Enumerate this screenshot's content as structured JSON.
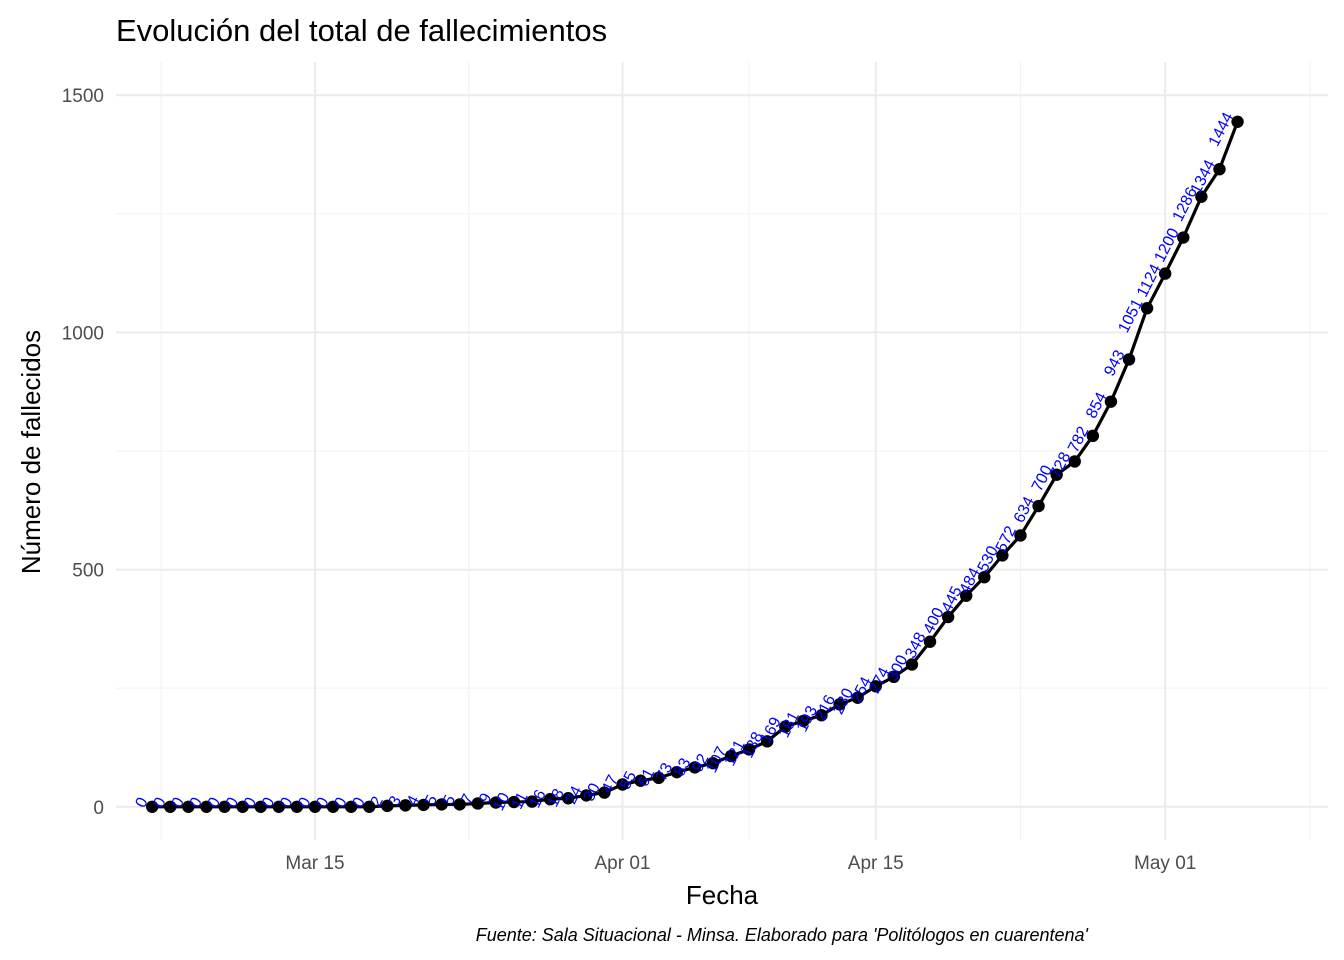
{
  "chart_data": {
    "type": "line",
    "title": "Evolución del total de fallecimientos",
    "xlabel": "Fecha",
    "ylabel": "Número de fallecidos",
    "caption": "Fuente: Sala Situacional - Minsa. Elaborado para 'Politólogos en cuarentena'",
    "x_start": "2020-03-06",
    "x_range": [
      "2020-03-04",
      "2020-05-10"
    ],
    "ylim": [
      -70,
      1570
    ],
    "y_ticks": [
      0,
      500,
      1000,
      1500
    ],
    "x_ticks": [
      {
        "date": "2020-03-15",
        "label": "Mar 15"
      },
      {
        "date": "2020-04-01",
        "label": "Apr 01"
      },
      {
        "date": "2020-04-15",
        "label": "Apr 15"
      },
      {
        "date": "2020-05-01",
        "label": "May 01"
      }
    ],
    "grid": true,
    "line_color": "#000000",
    "label_color": "#0000ff",
    "series": [
      {
        "values": [
          0,
          0,
          0,
          0,
          0,
          0,
          0,
          0,
          0,
          0,
          0,
          0,
          0,
          2,
          3,
          4,
          5,
          5,
          7,
          9,
          10,
          11,
          16,
          18,
          24,
          30,
          47,
          55,
          61,
          73,
          83,
          92,
          107,
          121,
          138,
          169,
          181,
          193,
          216,
          230,
          254,
          274,
          300,
          348,
          400,
          445,
          484,
          530,
          572,
          634,
          700,
          728,
          782,
          854,
          943,
          1051,
          1124,
          1200,
          1286,
          1344,
          1444
        ],
        "labels": [
          "0",
          "0",
          "0",
          "0",
          "0",
          "0",
          "0",
          "0",
          "0",
          "0",
          "0",
          "0",
          "0",
          "2",
          "3",
          "4",
          "5",
          "5",
          "7",
          "9",
          "10",
          "11",
          "16",
          "18",
          "24",
          "30",
          "47",
          "55",
          "61",
          "73",
          "83",
          "92",
          "107",
          "121",
          "138",
          "169",
          "181",
          "193",
          "216",
          "230",
          "254",
          "274",
          "300",
          "348",
          "400",
          "445",
          "484",
          "530",
          "572",
          "634",
          "700",
          "728",
          "782",
          "854",
          "943",
          "1051",
          "1124",
          "1200",
          "1286",
          "1344",
          "1444"
        ]
      }
    ]
  }
}
